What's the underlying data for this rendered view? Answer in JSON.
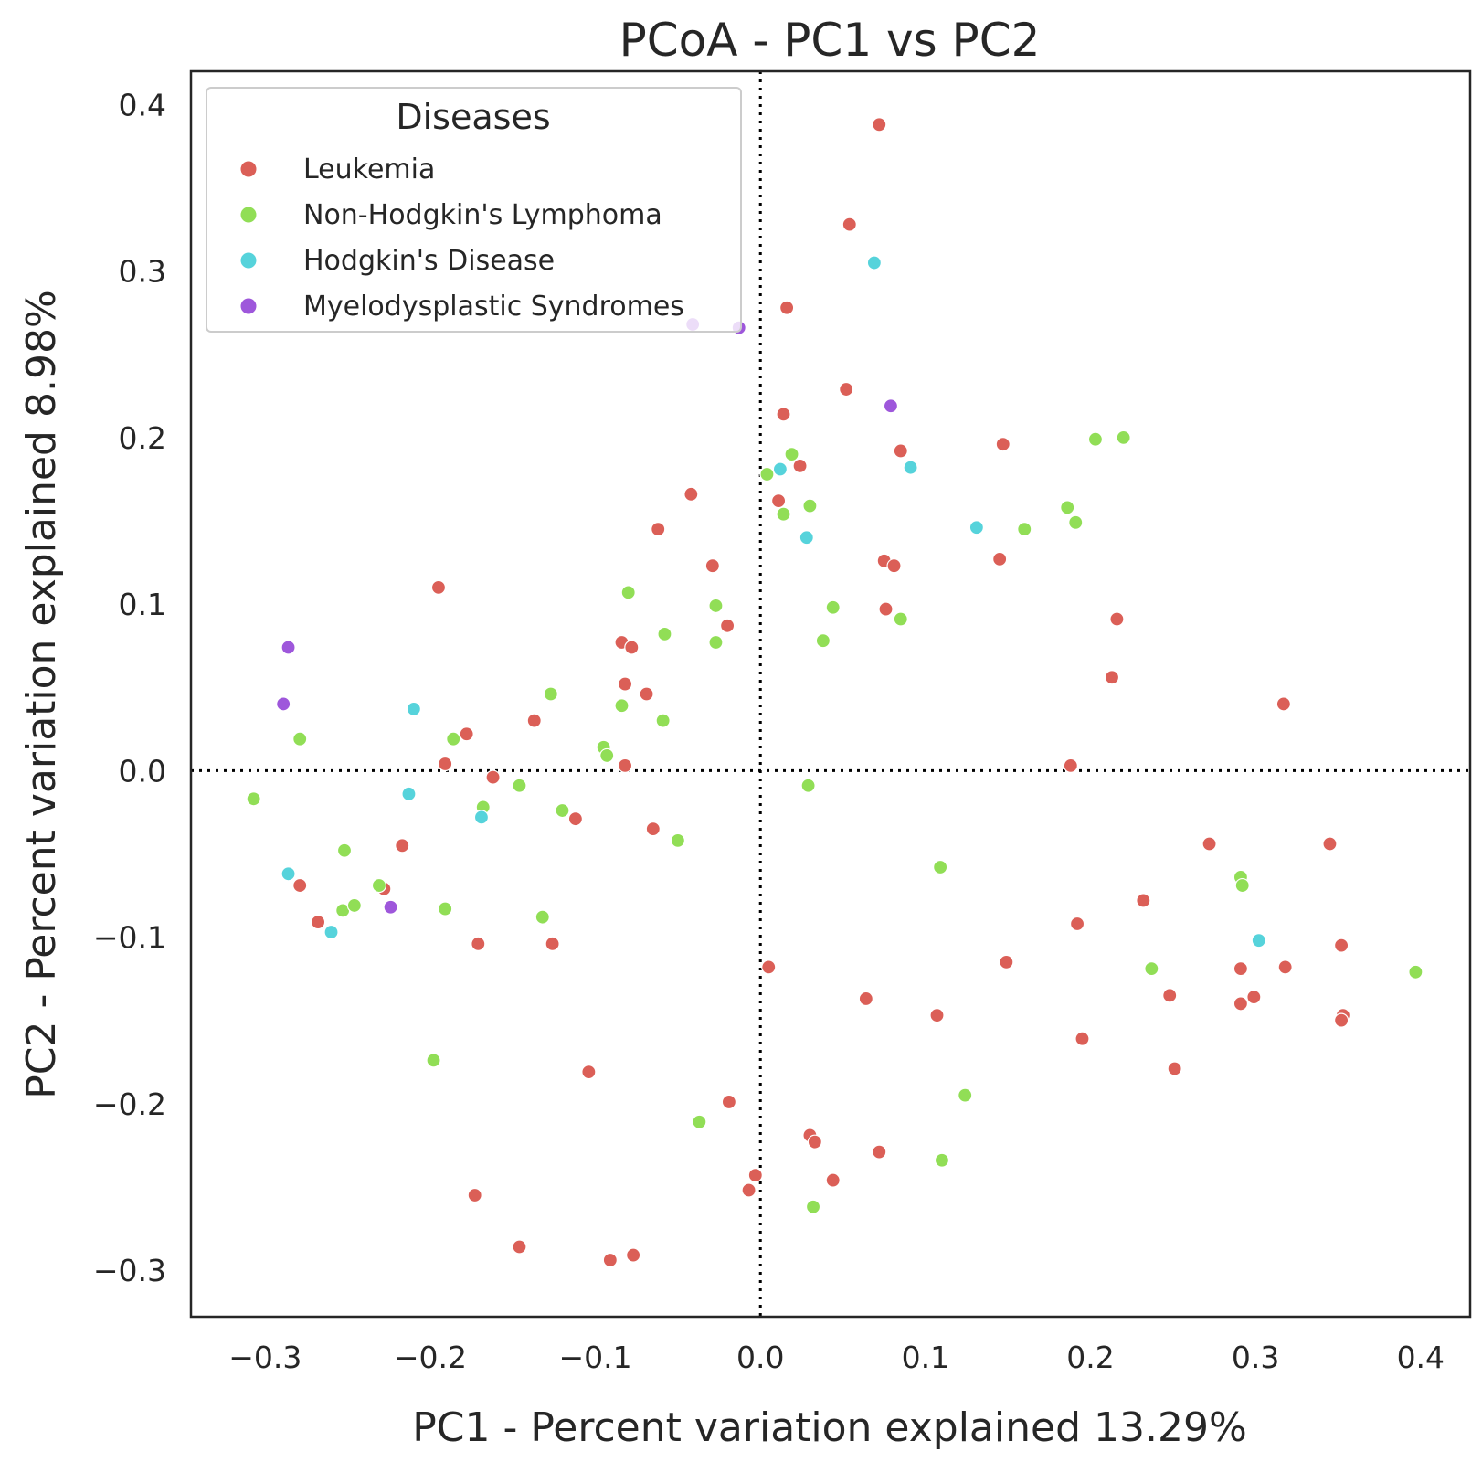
{
  "chart_data": {
    "type": "scatter",
    "title": "PCoA - PC1 vs PC2",
    "xlabel": "PC1 - Percent variation explained 13.29%",
    "ylabel": "PC2 - Percent variation explained 8.98%",
    "xlim": [
      -0.345,
      0.43
    ],
    "ylim": [
      -0.328,
      0.42
    ],
    "xticks": [
      -0.3,
      -0.2,
      -0.1,
      0.0,
      0.1,
      0.2,
      0.3,
      0.4
    ],
    "yticks": [
      -0.3,
      -0.2,
      -0.1,
      0.0,
      0.1,
      0.2,
      0.3,
      0.4
    ],
    "xtick_labels": [
      "−0.3",
      "−0.2",
      "−0.1",
      "0.0",
      "0.1",
      "0.2",
      "0.3",
      "0.4"
    ],
    "ytick_labels": [
      "−0.3",
      "−0.2",
      "−0.1",
      "0.0",
      "0.1",
      "0.2",
      "0.3",
      "0.4"
    ],
    "grid": false,
    "reference_lines": {
      "x": 0,
      "y": 0,
      "style": "dotted"
    },
    "legend": {
      "title": "Diseases",
      "position": "top-left"
    },
    "series": [
      {
        "name": "Leukemia",
        "color": "#db5f57",
        "points": [
          [
            0.072,
            0.388
          ],
          [
            0.054,
            0.328
          ],
          [
            0.016,
            0.278
          ],
          [
            0.052,
            0.229
          ],
          [
            0.014,
            0.214
          ],
          [
            0.085,
            0.192
          ],
          [
            0.147,
            0.196
          ],
          [
            0.024,
            0.183
          ],
          [
            0.011,
            0.162
          ],
          [
            -0.042,
            0.166
          ],
          [
            -0.062,
            0.145
          ],
          [
            -0.029,
            0.123
          ],
          [
            0.075,
            0.126
          ],
          [
            0.081,
            0.123
          ],
          [
            0.145,
            0.127
          ],
          [
            -0.195,
            0.11
          ],
          [
            0.076,
            0.097
          ],
          [
            -0.02,
            0.087
          ],
          [
            0.216,
            0.091
          ],
          [
            -0.084,
            0.077
          ],
          [
            -0.078,
            0.074
          ],
          [
            0.213,
            0.056
          ],
          [
            0.317,
            0.04
          ],
          [
            -0.082,
            0.052
          ],
          [
            -0.069,
            0.046
          ],
          [
            -0.137,
            0.03
          ],
          [
            -0.178,
            0.022
          ],
          [
            -0.191,
            0.004
          ],
          [
            -0.082,
            0.003
          ],
          [
            0.188,
            0.003
          ],
          [
            -0.162,
            -0.004
          ],
          [
            -0.112,
            -0.029
          ],
          [
            -0.065,
            -0.035
          ],
          [
            -0.217,
            -0.045
          ],
          [
            0.272,
            -0.044
          ],
          [
            0.345,
            -0.044
          ],
          [
            -0.279,
            -0.069
          ],
          [
            -0.228,
            -0.071
          ],
          [
            0.232,
            -0.078
          ],
          [
            -0.268,
            -0.091
          ],
          [
            0.192,
            -0.092
          ],
          [
            -0.171,
            -0.104
          ],
          [
            -0.126,
            -0.104
          ],
          [
            0.352,
            -0.105
          ],
          [
            0.005,
            -0.118
          ],
          [
            0.149,
            -0.115
          ],
          [
            0.291,
            -0.119
          ],
          [
            0.318,
            -0.118
          ],
          [
            0.248,
            -0.135
          ],
          [
            0.064,
            -0.137
          ],
          [
            0.299,
            -0.136
          ],
          [
            0.291,
            -0.14
          ],
          [
            0.107,
            -0.147
          ],
          [
            0.353,
            -0.147
          ],
          [
            0.352,
            -0.15
          ],
          [
            0.195,
            -0.161
          ],
          [
            -0.104,
            -0.181
          ],
          [
            0.251,
            -0.179
          ],
          [
            -0.019,
            -0.199
          ],
          [
            0.03,
            -0.219
          ],
          [
            0.033,
            -0.223
          ],
          [
            0.072,
            -0.229
          ],
          [
            -0.003,
            -0.243
          ],
          [
            0.044,
            -0.246
          ],
          [
            -0.007,
            -0.252
          ],
          [
            -0.173,
            -0.255
          ],
          [
            -0.146,
            -0.286
          ],
          [
            -0.091,
            -0.294
          ],
          [
            -0.077,
            -0.291
          ]
        ]
      },
      {
        "name": "Non-Hodgkin's Lymphoma",
        "color": "#91de56",
        "points": [
          [
            0.203,
            0.199
          ],
          [
            0.22,
            0.2
          ],
          [
            0.019,
            0.19
          ],
          [
            0.004,
            0.178
          ],
          [
            0.014,
            0.154
          ],
          [
            0.03,
            0.159
          ],
          [
            0.186,
            0.158
          ],
          [
            0.191,
            0.149
          ],
          [
            0.16,
            0.145
          ],
          [
            -0.08,
            0.107
          ],
          [
            -0.027,
            0.099
          ],
          [
            0.044,
            0.098
          ],
          [
            0.085,
            0.091
          ],
          [
            -0.058,
            0.082
          ],
          [
            -0.027,
            0.077
          ],
          [
            0.038,
            0.078
          ],
          [
            -0.127,
            0.046
          ],
          [
            -0.084,
            0.039
          ],
          [
            -0.059,
            0.03
          ],
          [
            -0.279,
            0.019
          ],
          [
            -0.186,
            0.019
          ],
          [
            -0.095,
            0.014
          ],
          [
            -0.093,
            0.009
          ],
          [
            -0.146,
            -0.009
          ],
          [
            0.029,
            -0.009
          ],
          [
            -0.307,
            -0.017
          ],
          [
            -0.168,
            -0.022
          ],
          [
            -0.12,
            -0.024
          ],
          [
            -0.05,
            -0.042
          ],
          [
            -0.252,
            -0.048
          ],
          [
            0.109,
            -0.058
          ],
          [
            0.291,
            -0.064
          ],
          [
            0.292,
            -0.069
          ],
          [
            -0.231,
            -0.069
          ],
          [
            -0.253,
            -0.084
          ],
          [
            -0.246,
            -0.081
          ],
          [
            -0.191,
            -0.083
          ],
          [
            -0.132,
            -0.088
          ],
          [
            0.237,
            -0.119
          ],
          [
            0.397,
            -0.121
          ],
          [
            -0.198,
            -0.174
          ],
          [
            0.124,
            -0.195
          ],
          [
            -0.037,
            -0.211
          ],
          [
            0.11,
            -0.234
          ],
          [
            0.032,
            -0.262
          ]
        ]
      },
      {
        "name": "Hodgkin's Disease",
        "color": "#56d3db",
        "points": [
          [
            0.069,
            0.305
          ],
          [
            0.012,
            0.181
          ],
          [
            0.091,
            0.182
          ],
          [
            0.131,
            0.146
          ],
          [
            0.028,
            0.14
          ],
          [
            -0.21,
            0.037
          ],
          [
            -0.213,
            -0.014
          ],
          [
            -0.169,
            -0.028
          ],
          [
            -0.286,
            -0.062
          ],
          [
            -0.26,
            -0.097
          ],
          [
            0.302,
            -0.102
          ]
        ]
      },
      {
        "name": "Myelodysplastic Syndromes",
        "color": "#9e57db",
        "points": [
          [
            -0.041,
            0.268
          ],
          [
            -0.013,
            0.266
          ],
          [
            0.079,
            0.219
          ],
          [
            -0.286,
            0.074
          ],
          [
            -0.289,
            0.04
          ],
          [
            -0.224,
            -0.082
          ]
        ]
      }
    ]
  }
}
